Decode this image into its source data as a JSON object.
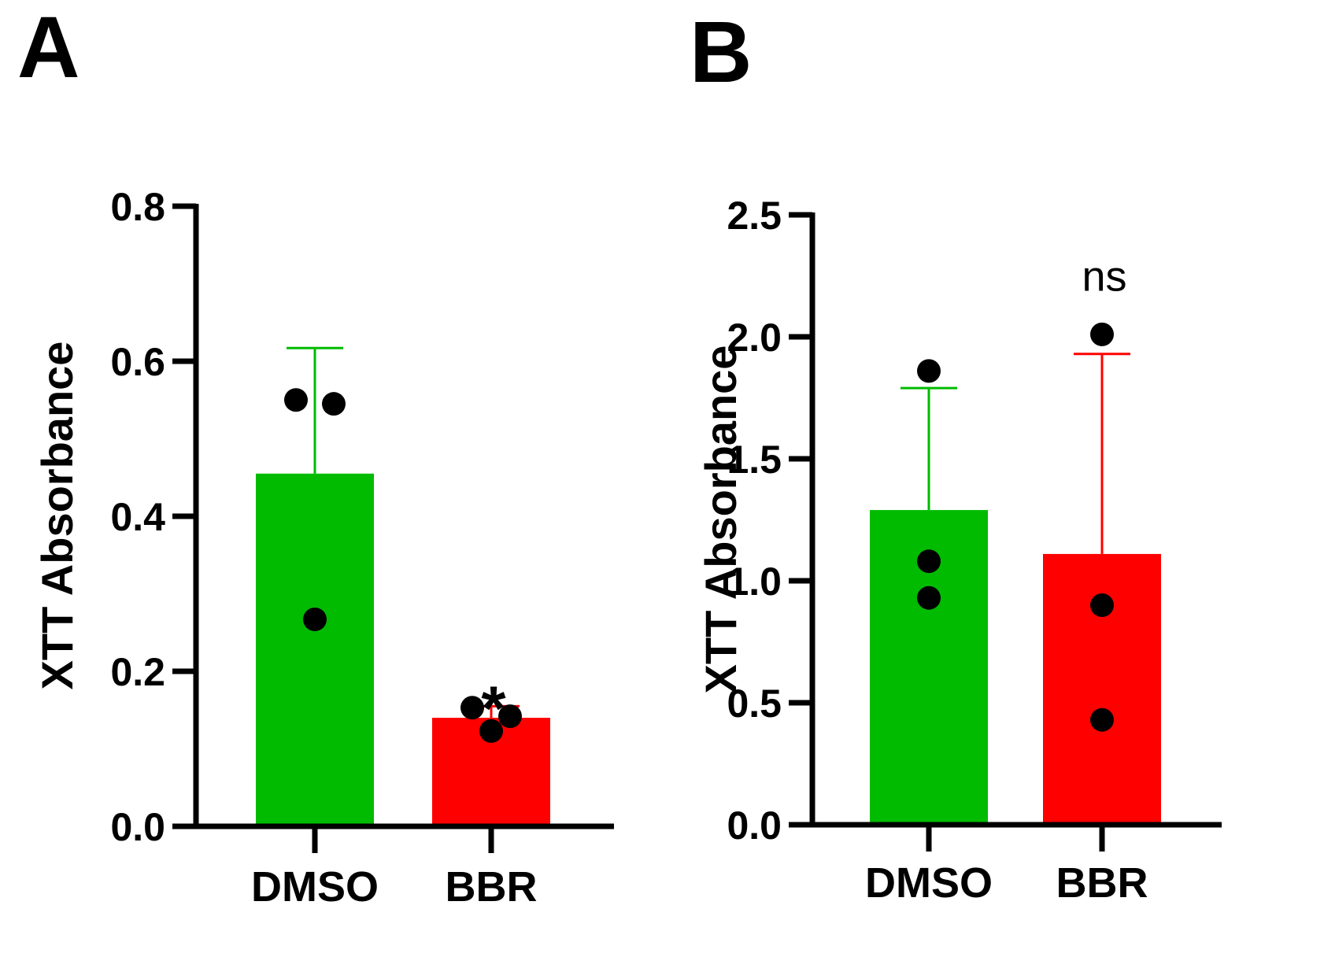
{
  "chart_data": [
    {
      "type": "bar",
      "panel_label": "A",
      "title": "",
      "xlabel": "",
      "ylabel": "XTT Absorbance",
      "ylim": [
        0,
        0.8
      ],
      "yticks": [
        "0.0",
        "0.2",
        "0.4",
        "0.6",
        "0.8"
      ],
      "yticks_values": [
        0,
        0.2,
        0.4,
        0.6,
        0.8
      ],
      "categories": [
        "DMSO",
        "BBR"
      ],
      "values": [
        0.455,
        0.14
      ],
      "error_upper": [
        0.617,
        0.155
      ],
      "points": [
        [
          0.55,
          0.545,
          0.267
        ],
        [
          0.153,
          0.142,
          0.123
        ]
      ],
      "colors": [
        "#00bb00",
        "#ff0000"
      ],
      "significance": [
        "",
        "*"
      ]
    },
    {
      "type": "bar",
      "panel_label": "B",
      "title": "",
      "xlabel": "",
      "ylabel": "XTT Absorbance",
      "ylim": [
        0,
        2.5
      ],
      "yticks": [
        "0.0",
        "0.5",
        "1.0",
        "1.5",
        "2.0",
        "2.5"
      ],
      "yticks_values": [
        0,
        0.5,
        1.0,
        1.5,
        2.0,
        2.5
      ],
      "categories": [
        "DMSO",
        "BBR"
      ],
      "values": [
        1.29,
        1.11
      ],
      "error_upper": [
        1.79,
        1.93
      ],
      "points": [
        [
          1.86,
          1.08,
          0.93
        ],
        [
          2.01,
          0.9,
          0.43
        ]
      ],
      "colors": [
        "#00bb00",
        "#ff0000"
      ],
      "significance": [
        "",
        "ns"
      ]
    }
  ]
}
